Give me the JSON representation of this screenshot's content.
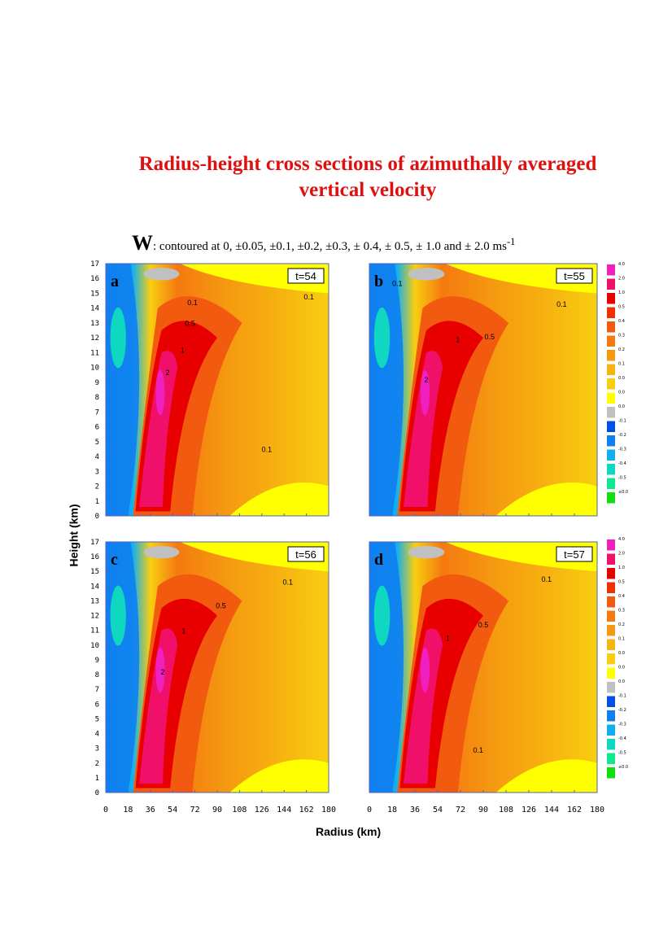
{
  "figure": {
    "title_line1": "Radius-height cross sections of azimuthally averaged",
    "title_line2": "vertical velocity",
    "subtitle_symbol": "W",
    "subtitle_text": ": contoured at 0, ±0.05, ±0.1, ±0.2, ±0.3, ± 0.4, ± 0.5, ± 1.0 and ± 2.0 ms",
    "subtitle_sup": "-1",
    "ylabel": "Height (km)",
    "xlabel": "Radius (km)"
  },
  "colorbar": {
    "labels": [
      "4.0",
      "2.0",
      "1.0",
      "0.5",
      "0.4",
      "0.3",
      "0.2",
      "0.1",
      "0.0",
      "0.0",
      "0.0",
      "-0.1",
      "-0.2",
      "-0.3",
      "-0.4",
      "-0.5",
      "≤0.0"
    ],
    "colors": [
      "#f020c0",
      "#f0106a",
      "#e80000",
      "#f03000",
      "#f25a10",
      "#f57a10",
      "#f59a10",
      "#f7b410",
      "#f8ce10",
      "#ffff00",
      "#c0c0c0",
      "#0050e8",
      "#1080f0",
      "#10b0f0",
      "#10d8c0",
      "#10e890",
      "#10e010"
    ]
  },
  "chart_data": [
    {
      "type": "heatmap",
      "panel_label": "a",
      "time_label": "t=54",
      "xlim": [
        0,
        180
      ],
      "ylim": [
        0,
        17
      ],
      "x_ticks": [
        "0",
        "18",
        "36",
        "54",
        "72",
        "90",
        "108",
        "126",
        "144",
        "162",
        "180"
      ],
      "y_ticks": [
        "0",
        "1",
        "2",
        "3",
        "4",
        "5",
        "6",
        "7",
        "8",
        "9",
        "10",
        "11",
        "12",
        "13",
        "14",
        "15",
        "16",
        "17"
      ],
      "contour_labels": [
        {
          "text": "2",
          "x": 50,
          "y": 9.5
        },
        {
          "text": "1",
          "x": 62,
          "y": 11
        },
        {
          "text": "0.5",
          "x": 68,
          "y": 12.8
        },
        {
          "text": "0.1",
          "x": 70,
          "y": 14.2
        },
        {
          "text": "0.1",
          "x": 164,
          "y": 14.6
        },
        {
          "text": "0.1",
          "x": 130,
          "y": 4.3
        }
      ]
    },
    {
      "type": "heatmap",
      "panel_label": "b",
      "time_label": "t=55",
      "xlim": [
        0,
        180
      ],
      "ylim": [
        0,
        17
      ],
      "x_ticks": [
        "0",
        "18",
        "36",
        "54",
        "72",
        "90",
        "108",
        "126",
        "144",
        "162",
        "180"
      ],
      "y_ticks": [
        "0",
        "1",
        "2",
        "3",
        "4",
        "5",
        "6",
        "7",
        "8",
        "9",
        "10",
        "11",
        "12",
        "13",
        "14",
        "15",
        "16",
        "17"
      ],
      "contour_labels": [
        {
          "text": "2",
          "x": 45,
          "y": 9
        },
        {
          "text": "1",
          "x": 70,
          "y": 11.7
        },
        {
          "text": "0.5",
          "x": 95,
          "y": 11.9
        },
        {
          "text": "0.1",
          "x": 152,
          "y": 14.1
        },
        {
          "text": "0.1",
          "x": 22,
          "y": 15.5
        }
      ]
    },
    {
      "type": "heatmap",
      "panel_label": "c",
      "time_label": "t=56",
      "xlim": [
        0,
        180
      ],
      "ylim": [
        0,
        17
      ],
      "x_ticks": [
        "0",
        "18",
        "36",
        "54",
        "72",
        "90",
        "108",
        "126",
        "144",
        "162",
        "180"
      ],
      "y_ticks": [
        "0",
        "1",
        "2",
        "3",
        "4",
        "5",
        "6",
        "7",
        "8",
        "9",
        "10",
        "11",
        "12",
        "13",
        "14",
        "15",
        "16",
        "17"
      ],
      "contour_labels": [
        {
          "text": "2",
          "x": 46,
          "y": 8
        },
        {
          "text": "1",
          "x": 63,
          "y": 10.8
        },
        {
          "text": "0.5",
          "x": 93,
          "y": 12.5
        },
        {
          "text": "0.1",
          "x": 147,
          "y": 14.1
        }
      ]
    },
    {
      "type": "heatmap",
      "panel_label": "d",
      "time_label": "t=57",
      "xlim": [
        0,
        180
      ],
      "ylim": [
        0,
        17
      ],
      "x_ticks": [
        "0",
        "18",
        "36",
        "54",
        "72",
        "90",
        "108",
        "126",
        "144",
        "162",
        "180"
      ],
      "y_ticks": [
        "0",
        "1",
        "2",
        "3",
        "4",
        "5",
        "6",
        "7",
        "8",
        "9",
        "10",
        "11",
        "12",
        "13",
        "14",
        "15",
        "16",
        "17"
      ],
      "contour_labels": [
        {
          "text": "1",
          "x": 62,
          "y": 10.3
        },
        {
          "text": "0.5",
          "x": 90,
          "y": 11.2
        },
        {
          "text": "0.1",
          "x": 140,
          "y": 14.3
        },
        {
          "text": "0.1",
          "x": 86,
          "y": 2.7
        }
      ]
    }
  ]
}
